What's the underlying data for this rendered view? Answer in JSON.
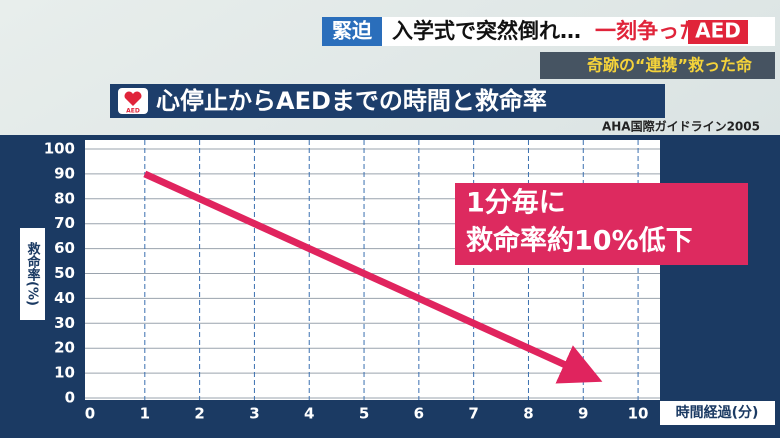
{
  "header": {
    "tag": "緊迫",
    "headline": "入学式で突然倒れ…",
    "headline_emphasis": "一刻争った",
    "headline_box": "AED",
    "subtitle": "奇跡の“連携”救った命"
  },
  "chart_data": {
    "type": "line",
    "title": "心停止からAEDまでの時間と救命率",
    "title_icon_text": "AED",
    "source": "AHA国際ガイドライン2005",
    "x_label": "時間経過(分)",
    "y_label": "救命率(%)",
    "series": [
      {
        "name": "救命率",
        "color": "#e0245e",
        "x": [
          1,
          9
        ],
        "values": [
          90,
          10
        ]
      }
    ],
    "xlim": [
      0,
      10.4
    ],
    "xticks": [
      0,
      1,
      2,
      3,
      4,
      5,
      6,
      7,
      8,
      9,
      10
    ],
    "ylim": [
      0,
      100
    ],
    "yticks": [
      0,
      10,
      20,
      30,
      40,
      50,
      60,
      70,
      80,
      90,
      100
    ],
    "grid": true,
    "annotations": [
      "1分毎に",
      "救命率約10%低下"
    ]
  }
}
